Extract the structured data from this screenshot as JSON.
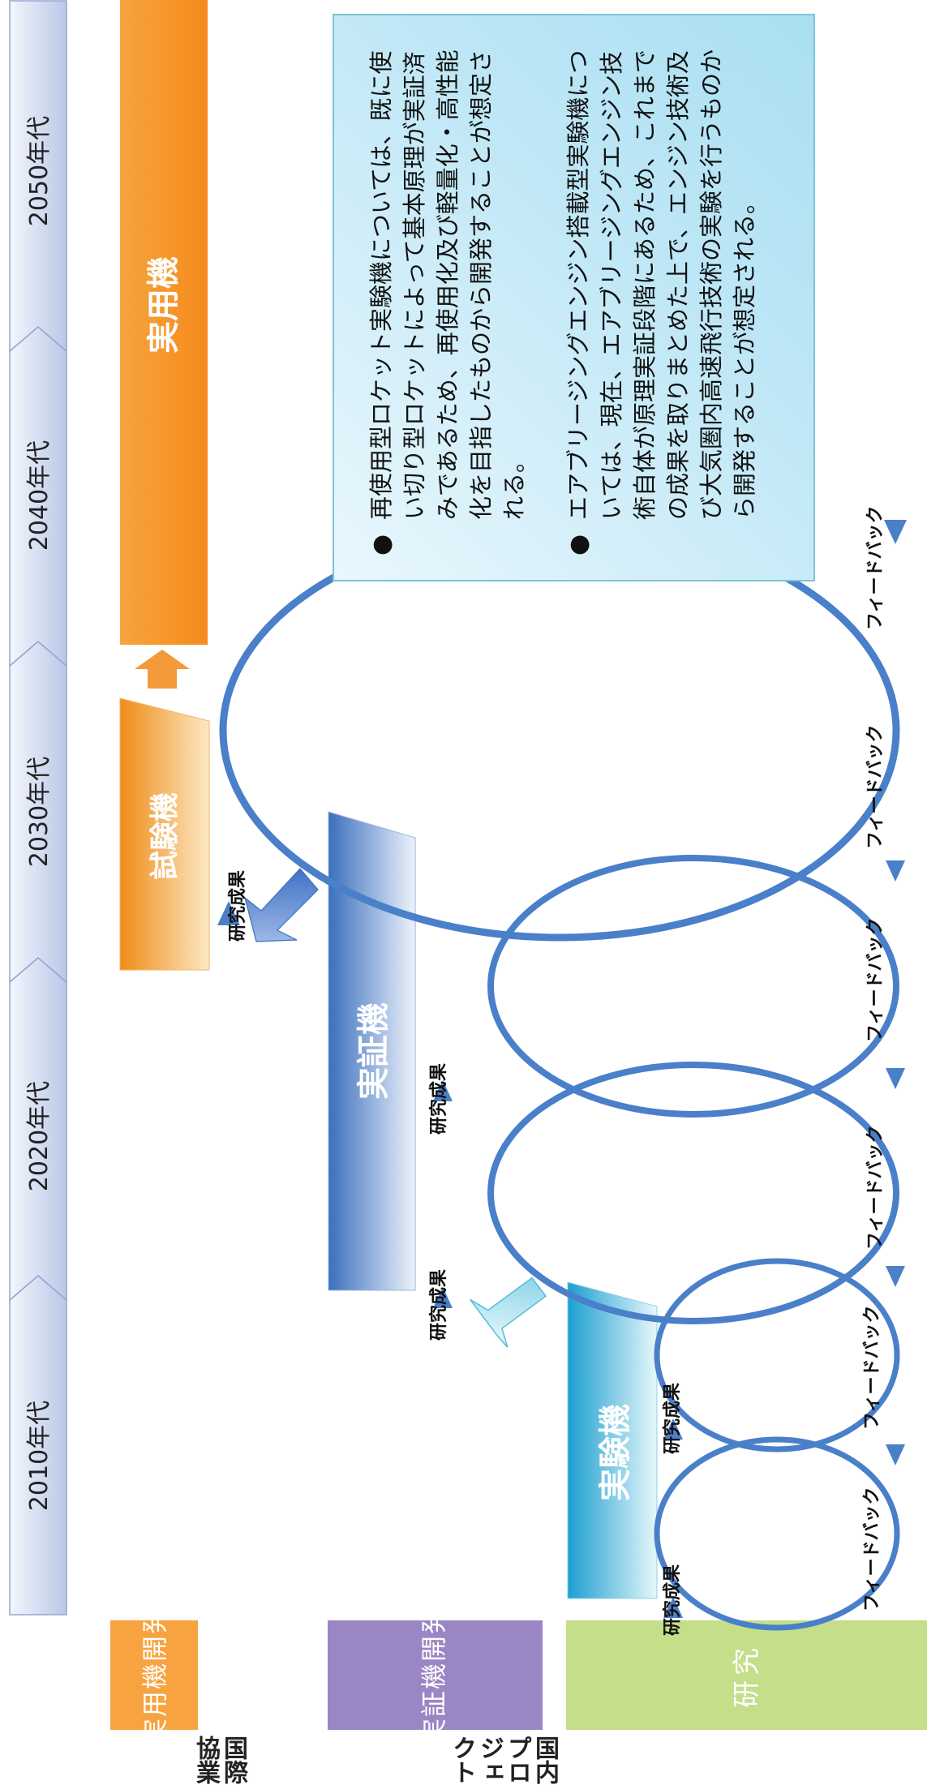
{
  "decades": [
    "2010年代",
    "2020年代",
    "2030年代",
    "2040年代",
    "2050年代"
  ],
  "stages": {
    "research": "研究",
    "demo_dev": "実証機開発",
    "practical_dev": "実用機開発"
  },
  "groups": {
    "domestic": "国内プロジェクト",
    "international": "国際協業"
  },
  "phases": {
    "experimental": "実験機",
    "demonstrator": "実証機",
    "test": "試験機",
    "practical": "実用機"
  },
  "loops": {
    "result": "研究成果",
    "feedback": "フィードバック"
  },
  "notes": [
    "再使用型ロケット実験機については、既に使い切り型ロケットによって基本原理が実証済みであるため、再使用化及び軽量化・高性能化を目指したものから開発することが想定される。",
    "エアブリージングエンジン搭載型実験機については、現在、エアブリージングエンジン技術自体が原理実証段階にあるため、これまでの成果を取りまとめた上で、エンジン技術及び大気圏内高速飛行技術の実験を行うものから開発することが想定される。"
  ],
  "colors": {
    "timeline": "#dce4f4",
    "research": "#c4de8a",
    "demo_dev": "#9b86c4",
    "practical_dev": "#f7a340",
    "experimental": "#3ab4d9",
    "demonstrator": "#4c7fc5",
    "test": "#f39a2c",
    "loop": "#4a7fc9"
  }
}
